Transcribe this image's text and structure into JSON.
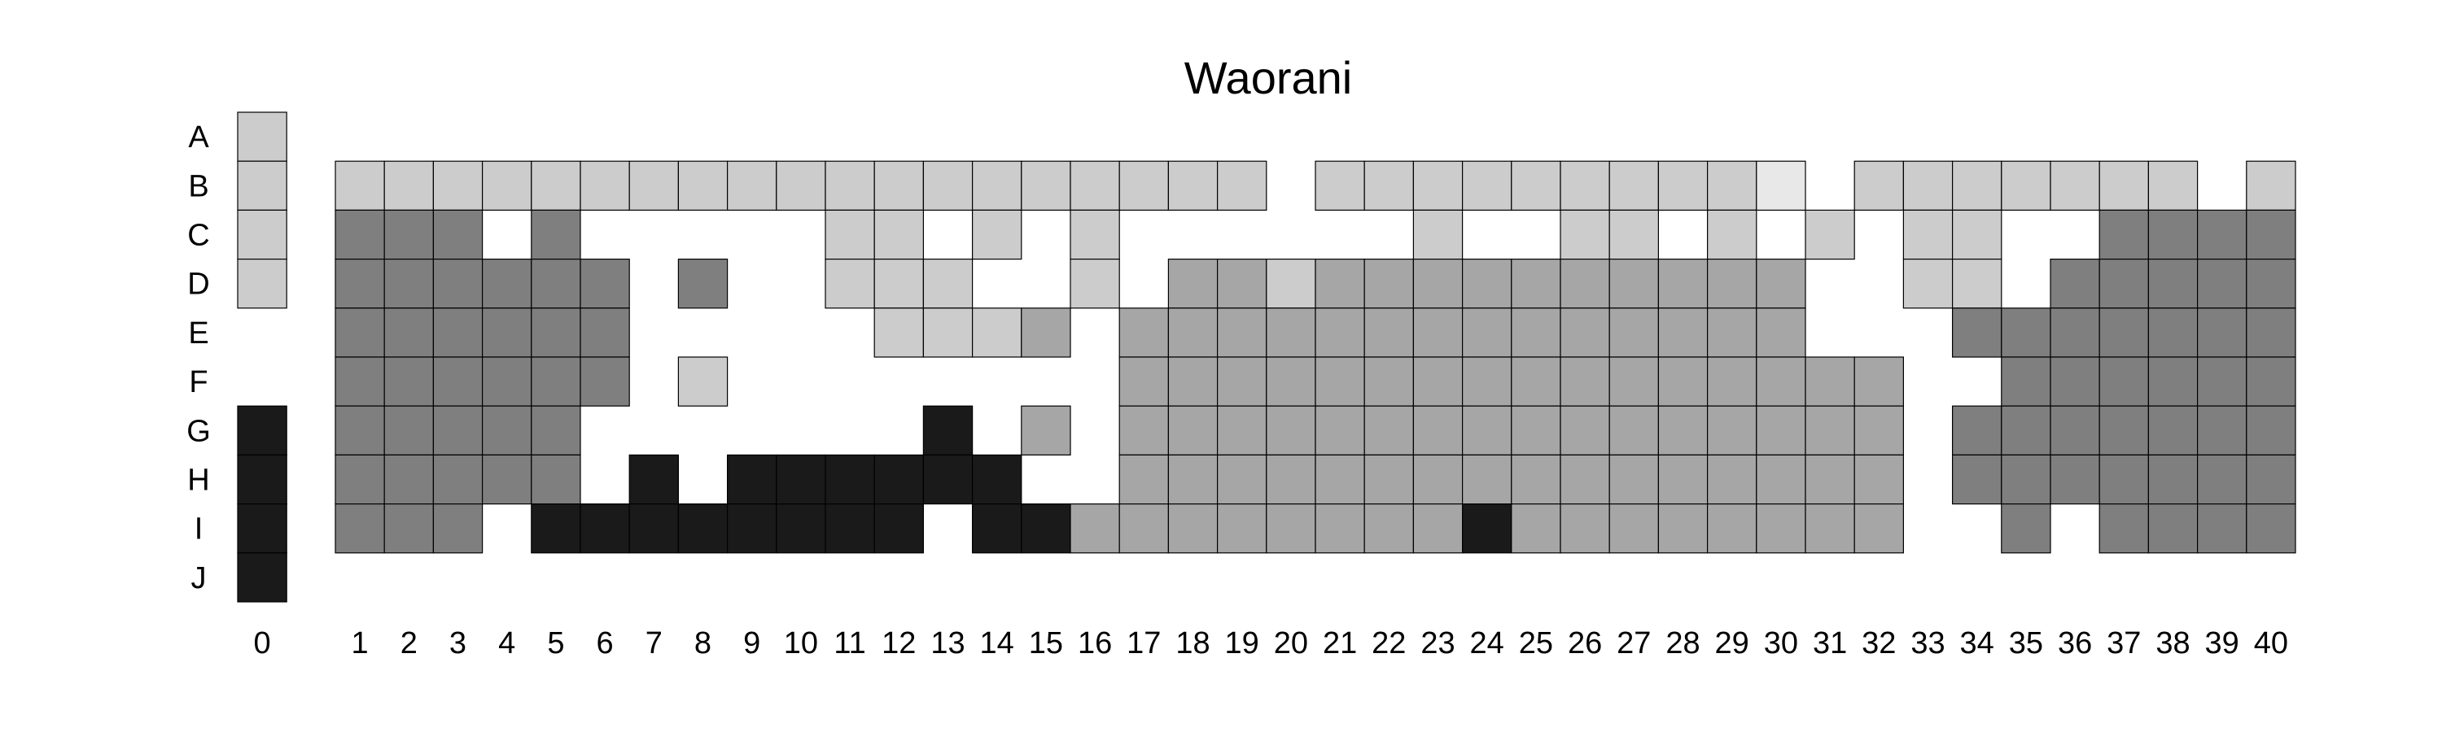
{
  "chart_data": {
    "type": "heatmap",
    "title": "Waorani",
    "row_labels": [
      "A",
      "B",
      "C",
      "D",
      "E",
      "F",
      "G",
      "H",
      "I",
      "J"
    ],
    "col_labels": [
      "0",
      "1",
      "2",
      "3",
      "4",
      "5",
      "6",
      "7",
      "8",
      "9",
      "10",
      "11",
      "12",
      "13",
      "14",
      "15",
      "16",
      "17",
      "18",
      "19",
      "20",
      "21",
      "22",
      "23",
      "24",
      "25",
      "26",
      "27",
      "28",
      "29",
      "30",
      "31",
      "32",
      "33",
      "34",
      "35",
      "36",
      "37",
      "38",
      "39",
      "40"
    ],
    "palette": {
      "1": "#e8e8e8",
      "2": "#cccccc",
      "3": "#a6a6a6",
      "4": "#7f7f7f",
      "5": "#1a1a1a"
    },
    "grid": [
      [
        2,
        0,
        0,
        0,
        0,
        0,
        0,
        0,
        0,
        0,
        0,
        0,
        0,
        0,
        0,
        0,
        0,
        0,
        0,
        0,
        0,
        0,
        0,
        0,
        0,
        0,
        0,
        0,
        0,
        0,
        0,
        0,
        0,
        0,
        0,
        0,
        0,
        0,
        0,
        0,
        0
      ],
      [
        2,
        2,
        2,
        2,
        2,
        2,
        2,
        2,
        2,
        2,
        2,
        2,
        2,
        2,
        2,
        2,
        2,
        2,
        2,
        2,
        0,
        2,
        2,
        2,
        2,
        2,
        2,
        2,
        2,
        2,
        1,
        0,
        2,
        2,
        2,
        2,
        2,
        2,
        2,
        0,
        2
      ],
      [
        2,
        4,
        4,
        4,
        0,
        4,
        0,
        0,
        0,
        0,
        0,
        2,
        2,
        0,
        2,
        0,
        2,
        0,
        0,
        0,
        0,
        0,
        0,
        2,
        0,
        0,
        2,
        2,
        0,
        2,
        0,
        2,
        0,
        2,
        2,
        0,
        0,
        4,
        4,
        4,
        4
      ],
      [
        2,
        4,
        4,
        4,
        4,
        4,
        4,
        0,
        4,
        0,
        0,
        2,
        2,
        2,
        0,
        0,
        2,
        0,
        3,
        3,
        2,
        3,
        3,
        3,
        3,
        3,
        3,
        3,
        3,
        3,
        3,
        0,
        0,
        2,
        2,
        0,
        4,
        4,
        4,
        4,
        4
      ],
      [
        0,
        4,
        4,
        4,
        4,
        4,
        4,
        0,
        0,
        0,
        0,
        0,
        2,
        2,
        2,
        3,
        0,
        3,
        3,
        3,
        3,
        3,
        3,
        3,
        3,
        3,
        3,
        3,
        3,
        3,
        3,
        0,
        0,
        0,
        4,
        4,
        4,
        4,
        4,
        4,
        4
      ],
      [
        0,
        4,
        4,
        4,
        4,
        4,
        4,
        0,
        2,
        0,
        0,
        0,
        0,
        0,
        0,
        0,
        0,
        3,
        3,
        3,
        3,
        3,
        3,
        3,
        3,
        3,
        3,
        3,
        3,
        3,
        3,
        3,
        3,
        0,
        0,
        4,
        4,
        4,
        4,
        4,
        4
      ],
      [
        5,
        4,
        4,
        4,
        4,
        4,
        0,
        0,
        0,
        0,
        0,
        0,
        0,
        5,
        0,
        3,
        0,
        3,
        3,
        3,
        3,
        3,
        3,
        3,
        3,
        3,
        3,
        3,
        3,
        3,
        3,
        3,
        3,
        0,
        4,
        4,
        4,
        4,
        4,
        4,
        4
      ],
      [
        5,
        4,
        4,
        4,
        4,
        4,
        0,
        5,
        0,
        5,
        5,
        5,
        5,
        5,
        5,
        0,
        0,
        3,
        3,
        3,
        3,
        3,
        3,
        3,
        3,
        3,
        3,
        3,
        3,
        3,
        3,
        3,
        3,
        0,
        4,
        4,
        4,
        4,
        4,
        4,
        4
      ],
      [
        5,
        4,
        4,
        4,
        0,
        5,
        5,
        5,
        5,
        5,
        5,
        5,
        5,
        0,
        5,
        5,
        3,
        3,
        3,
        3,
        3,
        3,
        3,
        3,
        5,
        3,
        3,
        3,
        3,
        3,
        3,
        3,
        3,
        0,
        0,
        4,
        0,
        4,
        4,
        4,
        4
      ],
      [
        5,
        0,
        0,
        0,
        0,
        0,
        0,
        0,
        0,
        0,
        0,
        0,
        0,
        0,
        0,
        0,
        0,
        0,
        0,
        0,
        0,
        0,
        0,
        0,
        0,
        0,
        0,
        0,
        0,
        0,
        0,
        0,
        0,
        0,
        0,
        0,
        0,
        0,
        0,
        0,
        0
      ]
    ]
  }
}
